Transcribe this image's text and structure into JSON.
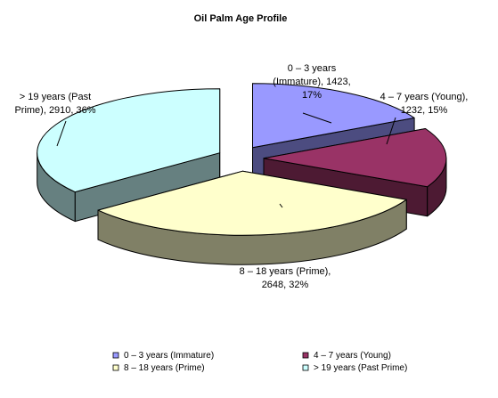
{
  "chart_data": {
    "type": "pie",
    "title": "Oil Palm Age Profile",
    "slices": [
      {
        "name": "0 – 3 years  (Immature)",
        "value": 1423,
        "percent": "17%",
        "label_lines": [
          "0 – 3 years",
          "(Immature), 1423,",
          "17%"
        ],
        "color": "#9999ff",
        "side_color": "#4c4c80",
        "exploded": true
      },
      {
        "name": "4 – 7 years (Young)",
        "value": 1232,
        "percent": "15%",
        "label_lines": [
          "4 – 7 years (Young),",
          "1232, 15%"
        ],
        "color": "#993366",
        "side_color": "#4d1a33",
        "exploded": true
      },
      {
        "name": "8 – 18 years (Prime)",
        "value": 2648,
        "percent": "32%",
        "label_lines": [
          "8 – 18 years (Prime),",
          "2648, 32%"
        ],
        "color": "#ffffcc",
        "side_color": "#808066",
        "exploded": true
      },
      {
        "name": "> 19 years (Past Prime)",
        "value": 2910,
        "percent": "36%",
        "label_lines": [
          "> 19 years (Past",
          "Prime), 2910, 36%"
        ],
        "color": "#ccffff",
        "side_color": "#668080",
        "exploded": true
      }
    ],
    "legend": {
      "placement": "bottom",
      "entries": [
        "0 – 3 years  (Immature)",
        "4 – 7 years (Young)",
        "8 – 18 years (Prime)",
        "> 19 years (Past Prime)"
      ]
    }
  }
}
